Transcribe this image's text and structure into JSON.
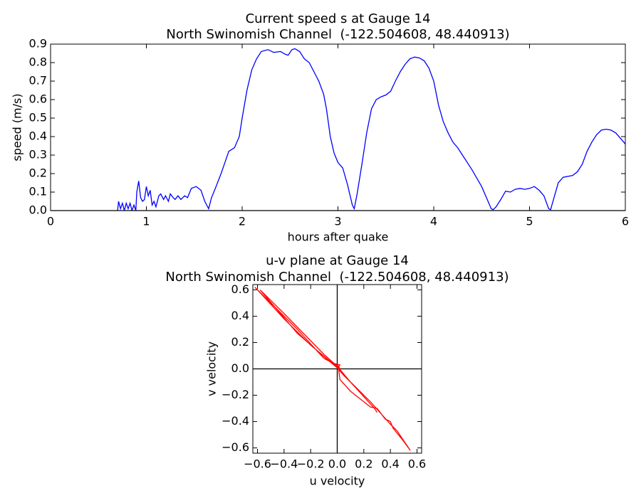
{
  "chart_data": [
    {
      "type": "line",
      "title": "Current speed s at Gauge 14",
      "subtitle": "North Swinomish Channel  (-122.504608, 48.440913)",
      "x_label": "hours after quake",
      "y_label": "speed (m/s)",
      "xlim": [
        0,
        6
      ],
      "ylim": [
        0,
        0.9
      ],
      "xticks": [
        0,
        1,
        2,
        3,
        4,
        5,
        6
      ],
      "yticks": [
        {
          "value": 0,
          "label": "0.0"
        },
        0.1,
        0.2,
        0.3,
        0.4,
        0.5,
        0.6,
        0.7,
        0.8,
        0.9
      ],
      "x": [
        0.7,
        0.71,
        0.73,
        0.75,
        0.77,
        0.79,
        0.81,
        0.83,
        0.85,
        0.87,
        0.89,
        0.9,
        0.92,
        0.94,
        0.96,
        0.98,
        1.0,
        1.02,
        1.04,
        1.06,
        1.08,
        1.1,
        1.13,
        1.15,
        1.18,
        1.2,
        1.23,
        1.25,
        1.28,
        1.3,
        1.33,
        1.36,
        1.4,
        1.43,
        1.47,
        1.52,
        1.57,
        1.61,
        1.65,
        1.68,
        1.72,
        1.78,
        1.82,
        1.86,
        1.92,
        1.97,
        2.0,
        2.05,
        2.1,
        2.15,
        2.2,
        2.27,
        2.33,
        2.4,
        2.45,
        2.48,
        2.52,
        2.55,
        2.6,
        2.65,
        2.7,
        2.75,
        2.8,
        2.85,
        2.88,
        2.92,
        2.96,
        3.0,
        3.05,
        3.1,
        3.15,
        3.17,
        3.2,
        3.25,
        3.3,
        3.35,
        3.4,
        3.45,
        3.5,
        3.55,
        3.6,
        3.65,
        3.7,
        3.75,
        3.8,
        3.85,
        3.9,
        3.95,
        4.0,
        4.05,
        4.1,
        4.15,
        4.2,
        4.25,
        4.3,
        4.4,
        4.5,
        4.55,
        4.6,
        4.62,
        4.65,
        4.7,
        4.75,
        4.8,
        4.85,
        4.9,
        4.95,
        5.0,
        5.05,
        5.1,
        5.15,
        5.2,
        5.22,
        5.25,
        5.3,
        5.35,
        5.45,
        5.5,
        5.55,
        5.6,
        5.65,
        5.7,
        5.75,
        5.8,
        5.85,
        5.9,
        5.95,
        6.0
      ],
      "series": [
        {
          "color": "#0000ff",
          "values": [
            0.0,
            0.05,
            0.01,
            0.04,
            0.0,
            0.04,
            0.01,
            0.04,
            0.0,
            0.03,
            0.0,
            0.1,
            0.16,
            0.07,
            0.05,
            0.06,
            0.13,
            0.08,
            0.11,
            0.03,
            0.05,
            0.02,
            0.08,
            0.09,
            0.06,
            0.08,
            0.05,
            0.09,
            0.07,
            0.06,
            0.08,
            0.06,
            0.08,
            0.07,
            0.12,
            0.13,
            0.11,
            0.05,
            0.01,
            0.07,
            0.12,
            0.2,
            0.26,
            0.32,
            0.34,
            0.4,
            0.5,
            0.65,
            0.76,
            0.82,
            0.86,
            0.87,
            0.855,
            0.86,
            0.845,
            0.84,
            0.87,
            0.875,
            0.86,
            0.82,
            0.8,
            0.75,
            0.7,
            0.63,
            0.55,
            0.4,
            0.31,
            0.26,
            0.23,
            0.14,
            0.03,
            0.01,
            0.09,
            0.25,
            0.42,
            0.55,
            0.6,
            0.615,
            0.625,
            0.645,
            0.7,
            0.75,
            0.79,
            0.82,
            0.83,
            0.825,
            0.81,
            0.77,
            0.7,
            0.57,
            0.48,
            0.42,
            0.37,
            0.34,
            0.3,
            0.22,
            0.13,
            0.07,
            0.01,
            0.005,
            0.02,
            0.06,
            0.105,
            0.1,
            0.115,
            0.12,
            0.115,
            0.12,
            0.13,
            0.11,
            0.08,
            0.01,
            0.005,
            0.06,
            0.15,
            0.18,
            0.19,
            0.21,
            0.25,
            0.32,
            0.37,
            0.41,
            0.435,
            0.44,
            0.435,
            0.42,
            0.39,
            0.36
          ]
        }
      ]
    },
    {
      "type": "line",
      "title": "u-v plane at Gauge 14",
      "subtitle": "North Swinomish Channel  (-122.504608, 48.440913)",
      "x_label": "u velocity",
      "y_label": "v velocity",
      "xlim": [
        -0.635,
        0.635
      ],
      "ylim": [
        -0.64,
        0.64
      ],
      "xticks": [
        {
          "value": -0.6,
          "label": "−0.6"
        },
        {
          "value": -0.4,
          "label": "−0.4"
        },
        {
          "value": -0.2,
          "label": "−0.2"
        },
        {
          "value": 0,
          "label": "0.0"
        },
        0.2,
        0.4,
        0.6
      ],
      "yticks": [
        {
          "value": -0.6,
          "label": "−0.6"
        },
        {
          "value": -0.4,
          "label": "−0.4"
        },
        {
          "value": -0.2,
          "label": "−0.2"
        },
        {
          "value": 0,
          "label": "0.0"
        },
        0.2,
        0.4,
        0.6
      ],
      "x": [
        0,
        0.02,
        -0.02,
        0.03,
        0.01,
        -0.1,
        -0.3,
        -0.5,
        -0.62,
        -0.6,
        -0.4,
        -0.2,
        -0.02,
        0.05,
        0.25,
        0.4,
        0.45,
        0.55,
        0.5,
        0.42,
        0.4,
        0.36,
        0.33,
        0.3,
        0.25,
        0.2,
        0.1,
        0.02,
        0.01,
        -0.05,
        -0.3,
        -0.58,
        -0.4,
        -0.1,
        0,
        0.1,
        0.28,
        0.3
      ],
      "series": [
        {
          "color": "#ff0000",
          "values": [
            0,
            0.03,
            0.04,
            -0.02,
            0.02,
            0.08,
            0.3,
            0.5,
            0.62,
            0.6,
            0.38,
            0.18,
            0.03,
            -0.05,
            -0.25,
            -0.42,
            -0.47,
            -0.62,
            -0.55,
            -0.45,
            -0.4,
            -0.38,
            -0.34,
            -0.3,
            -0.29,
            -0.25,
            -0.17,
            -0.08,
            0,
            0.05,
            0.27,
            0.6,
            0.42,
            0.11,
            0.02,
            -0.1,
            -0.3,
            -0.33
          ]
        }
      ]
    }
  ]
}
